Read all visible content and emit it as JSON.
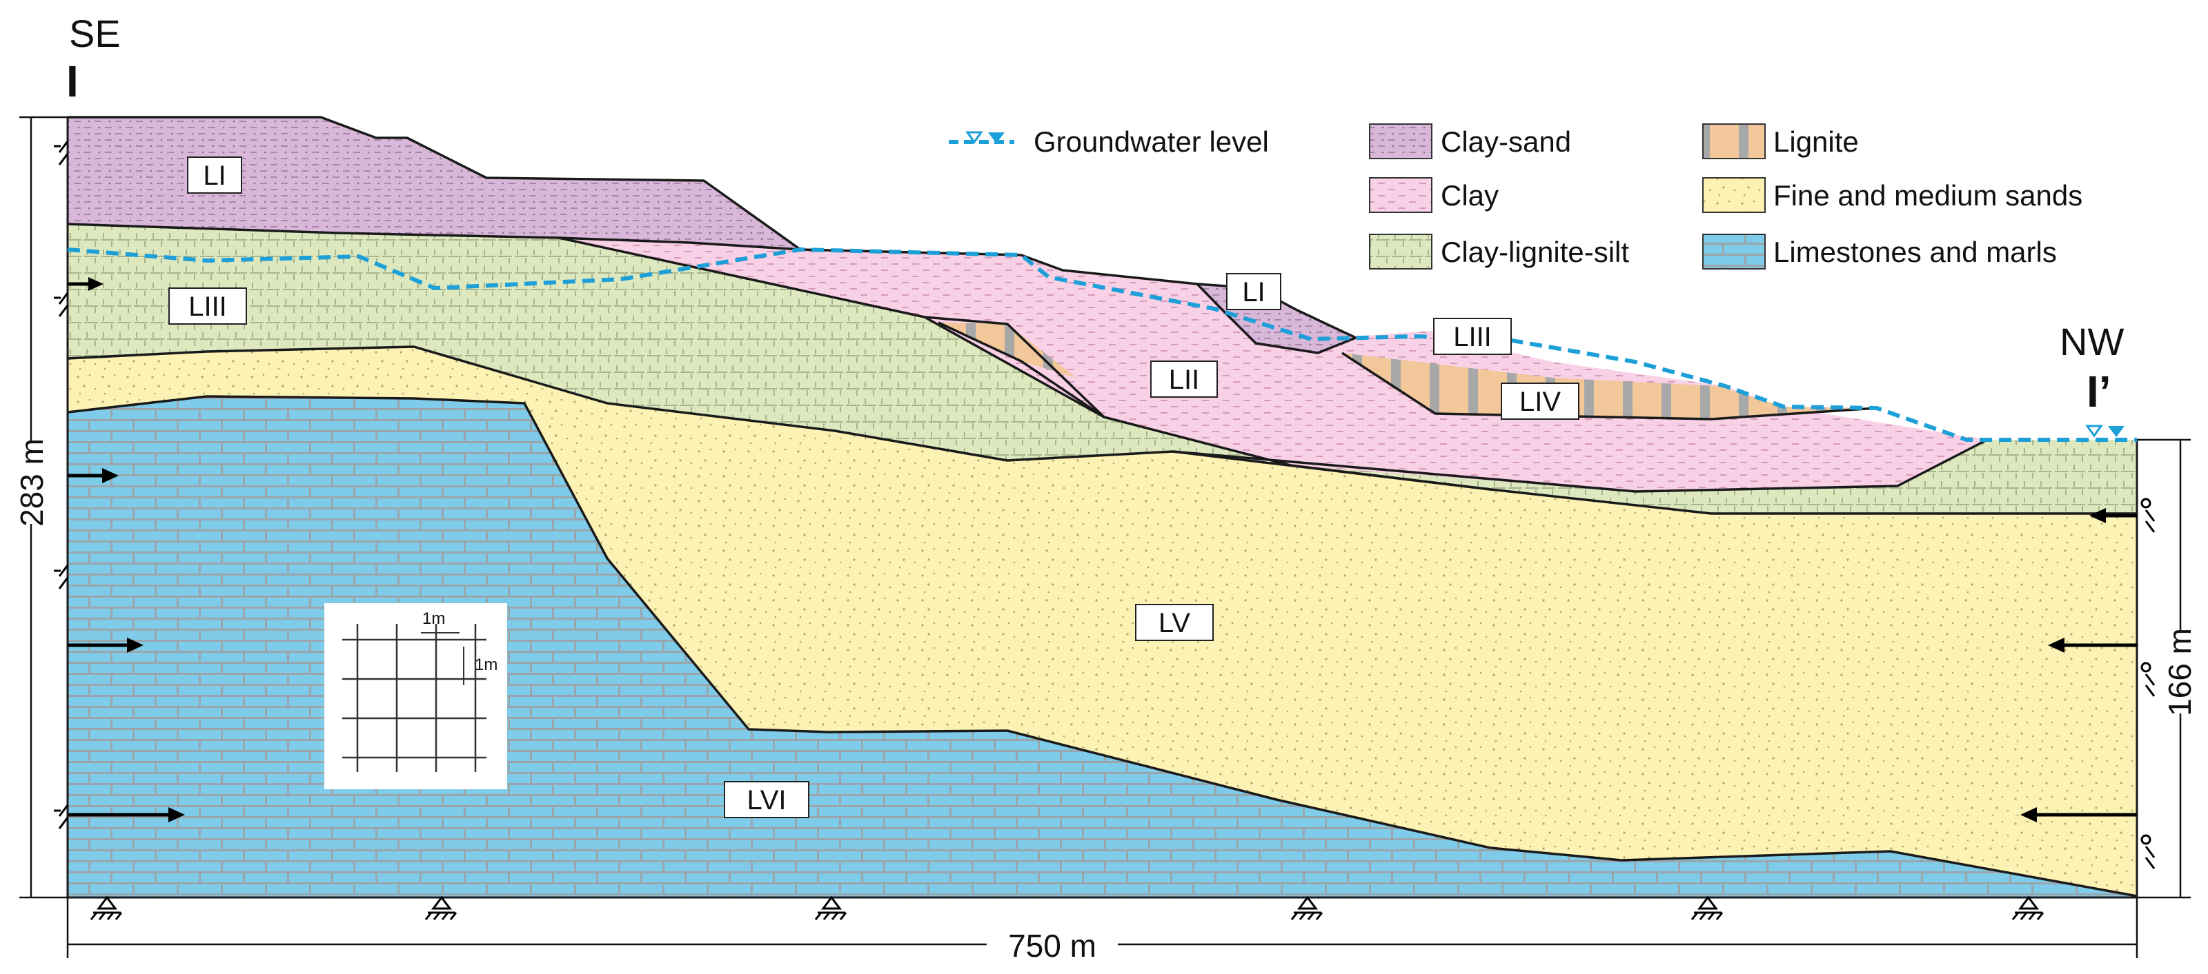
{
  "orientation": {
    "left_dir": "SE",
    "left_section": "I",
    "right_dir": "NW",
    "right_section": "I’"
  },
  "dimensions": {
    "height_left": "283 m",
    "height_right": "166 m",
    "width": "750 m"
  },
  "scale_grid": {
    "h": "1m",
    "v": "1m"
  },
  "legend": {
    "groundwater": "Groundwater level",
    "clay_sand": "Clay-sand",
    "clay": "Clay",
    "clay_lignite_silt": "Clay-lignite-silt",
    "lignite": "Lignite",
    "sands": "Fine and medium sands",
    "limestone": "Limestones and marls"
  },
  "layers": {
    "li_top": "LI",
    "liii_left": "LIII",
    "li_mid": "LI",
    "liii_right": "LIII",
    "lii": "LII",
    "liv": "LIV",
    "lv": "LV",
    "lvi": "LVI"
  },
  "colors": {
    "clay_sand": "#d8b7d9",
    "clay": "#f9d1e6",
    "clay_lignite_silt": "#dde8bf",
    "lignite": "#f2c79a",
    "sands": "#fbf2b4",
    "limestone": "#7fcbea",
    "groundwater": "#1d9fd8"
  }
}
